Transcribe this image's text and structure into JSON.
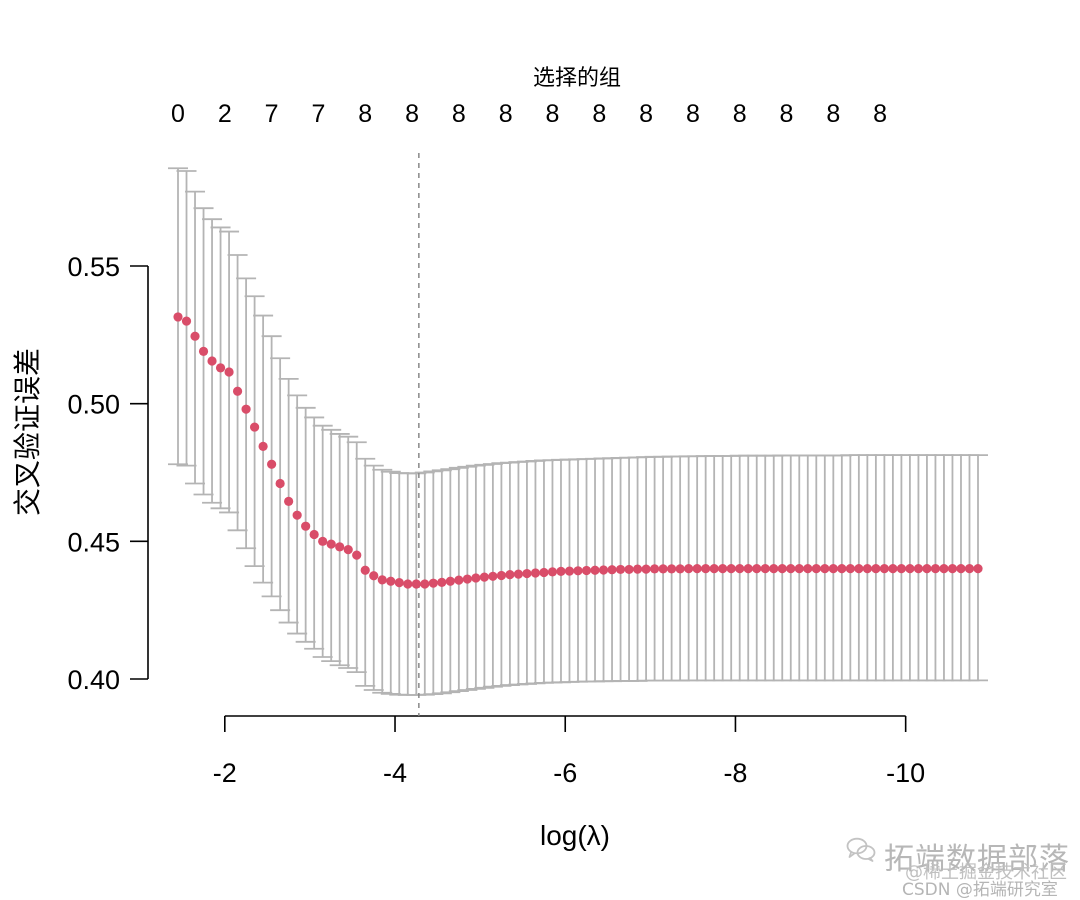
{
  "chart_data": {
    "type": "scatter",
    "top_axis_title": "选择的组",
    "ylabel": "交叉验证误差",
    "xlabel": "log(λ)",
    "x_ticks": [
      -2,
      -4,
      -6,
      -8,
      -10
    ],
    "x_tick_labels": [
      "-2",
      "-4",
      "-6",
      "-8",
      "-10"
    ],
    "y_ticks": [
      0.4,
      0.45,
      0.5,
      0.55
    ],
    "y_tick_labels": [
      "0.40",
      "0.45",
      "0.50",
      "0.55"
    ],
    "top_counts": [
      {
        "x": -1.45,
        "label": "0"
      },
      {
        "x": -2.0,
        "label": "2"
      },
      {
        "x": -2.55,
        "label": "7"
      },
      {
        "x": -3.1,
        "label": "7"
      },
      {
        "x": -3.65,
        "label": "8"
      },
      {
        "x": -4.2,
        "label": "8"
      },
      {
        "x": -4.75,
        "label": "8"
      },
      {
        "x": -5.3,
        "label": "8"
      },
      {
        "x": -5.85,
        "label": "8"
      },
      {
        "x": -6.4,
        "label": "8"
      },
      {
        "x": -6.95,
        "label": "8"
      },
      {
        "x": -7.5,
        "label": "8"
      },
      {
        "x": -8.05,
        "label": "8"
      },
      {
        "x": -8.6,
        "label": "8"
      },
      {
        "x": -9.15,
        "label": "8"
      },
      {
        "x": -9.7,
        "label": "8"
      }
    ],
    "xlim": [
      -1.45,
      -10.85
    ],
    "ylim": [
      0.4,
      0.55
    ],
    "vline": {
      "x": -4.28,
      "style": "dashed"
    },
    "point_color": "#d94d69",
    "error_bar_color": "#b4b4b4",
    "series": [
      {
        "x": [
          -1.45,
          -1.55,
          -1.65,
          -1.75,
          -1.85,
          -1.95,
          -2.05,
          -2.15,
          -2.25,
          -2.35,
          -2.45,
          -2.55,
          -2.65,
          -2.75,
          -2.85,
          -2.95,
          -3.05,
          -3.15,
          -3.25,
          -3.35,
          -3.45,
          -3.55,
          -3.65,
          -3.75,
          -3.85,
          -3.95,
          -4.05,
          -4.15,
          -4.25,
          -4.35,
          -4.45,
          -4.55,
          -4.65,
          -4.75,
          -4.85,
          -4.95,
          -5.05,
          -5.15,
          -5.25,
          -5.35,
          -5.45,
          -5.55,
          -5.65,
          -5.75,
          -5.85,
          -5.95,
          -6.05,
          -6.15,
          -6.25,
          -6.35,
          -6.45,
          -6.55,
          -6.65,
          -6.75,
          -6.85,
          -6.95,
          -7.05,
          -7.15,
          -7.25,
          -7.35,
          -7.45,
          -7.55,
          -7.65,
          -7.75,
          -7.85,
          -7.95,
          -8.05,
          -8.15,
          -8.25,
          -8.35,
          -8.45,
          -8.55,
          -8.65,
          -8.75,
          -8.85,
          -8.95,
          -9.05,
          -9.15,
          -9.25,
          -9.35,
          -9.45,
          -9.55,
          -9.65,
          -9.75,
          -9.85,
          -9.95,
          -10.05,
          -10.15,
          -10.25,
          -10.35,
          -10.45,
          -10.55,
          -10.65,
          -10.75,
          -10.85
        ],
        "y": [
          0.5315,
          0.53,
          0.5245,
          0.519,
          0.5155,
          0.513,
          0.5115,
          0.5045,
          0.498,
          0.4915,
          0.4845,
          0.478,
          0.471,
          0.4645,
          0.4595,
          0.4555,
          0.4525,
          0.45,
          0.449,
          0.448,
          0.447,
          0.445,
          0.4395,
          0.4375,
          0.436,
          0.4355,
          0.435,
          0.4345,
          0.4345,
          0.4345,
          0.4348,
          0.4351,
          0.4355,
          0.4359,
          0.4363,
          0.4367,
          0.437,
          0.4373,
          0.4376,
          0.4379,
          0.4381,
          0.4383,
          0.4385,
          0.4387,
          0.4389,
          0.4391,
          0.4392,
          0.4393,
          0.4394,
          0.4395,
          0.4396,
          0.4397,
          0.4398,
          0.4398,
          0.4399,
          0.4399,
          0.44,
          0.44,
          0.44,
          0.44,
          0.4401,
          0.4401,
          0.4401,
          0.4401,
          0.4401,
          0.4401,
          0.4401,
          0.4401,
          0.4401,
          0.4401,
          0.4401,
          0.4401,
          0.4401,
          0.4401,
          0.4401,
          0.4401,
          0.4401,
          0.4401,
          0.4401,
          0.4401,
          0.4401,
          0.4401,
          0.4401,
          0.4401,
          0.4401,
          0.4401,
          0.4401,
          0.4401,
          0.4401,
          0.4401,
          0.4401,
          0.4401,
          0.4401,
          0.4401,
          0.4401
        ],
        "upper": [
          0.5855,
          0.5845,
          0.577,
          0.571,
          0.567,
          0.564,
          0.5625,
          0.554,
          0.5455,
          0.539,
          0.532,
          0.5245,
          0.5165,
          0.509,
          0.503,
          0.4985,
          0.495,
          0.492,
          0.4905,
          0.489,
          0.488,
          0.486,
          0.48,
          0.4775,
          0.476,
          0.4753,
          0.4748,
          0.4747,
          0.4747,
          0.475,
          0.4754,
          0.4758,
          0.4762,
          0.4767,
          0.4771,
          0.4775,
          0.4778,
          0.4781,
          0.4784,
          0.4786,
          0.4788,
          0.479,
          0.4792,
          0.4794,
          0.4795,
          0.4796,
          0.4797,
          0.4798,
          0.4799,
          0.48,
          0.4801,
          0.4802,
          0.4803,
          0.4804,
          0.4805,
          0.4806,
          0.4807,
          0.4807,
          0.4808,
          0.4808,
          0.4809,
          0.4809,
          0.481,
          0.481,
          0.481,
          0.481,
          0.4811,
          0.4811,
          0.4811,
          0.4811,
          0.4811,
          0.4812,
          0.4812,
          0.4812,
          0.4812,
          0.4812,
          0.4812,
          0.4812,
          0.4812,
          0.4813,
          0.4813,
          0.4813,
          0.4813,
          0.4813,
          0.4813,
          0.4813,
          0.4813,
          0.4813,
          0.4813,
          0.4813,
          0.4813,
          0.4813,
          0.4813,
          0.4813,
          0.4813
        ],
        "lower": [
          0.478,
          0.4775,
          0.471,
          0.467,
          0.464,
          0.462,
          0.4605,
          0.454,
          0.4475,
          0.441,
          0.435,
          0.43,
          0.425,
          0.4205,
          0.4165,
          0.4135,
          0.411,
          0.408,
          0.4065,
          0.405,
          0.404,
          0.4025,
          0.3975,
          0.396,
          0.395,
          0.3946,
          0.3943,
          0.3942,
          0.3942,
          0.3943,
          0.3945,
          0.3948,
          0.3952,
          0.3956,
          0.396,
          0.3964,
          0.3968,
          0.3972,
          0.3975,
          0.3978,
          0.398,
          0.3982,
          0.3984,
          0.3986,
          0.3987,
          0.3988,
          0.3989,
          0.399,
          0.3991,
          0.3991,
          0.3992,
          0.3992,
          0.3993,
          0.3993,
          0.3993,
          0.3994,
          0.3994,
          0.3994,
          0.3994,
          0.3994,
          0.3995,
          0.3995,
          0.3995,
          0.3995,
          0.3995,
          0.3995,
          0.3995,
          0.3995,
          0.3995,
          0.3995,
          0.3995,
          0.3995,
          0.3995,
          0.3995,
          0.3995,
          0.3995,
          0.3995,
          0.3995,
          0.3995,
          0.3995,
          0.3995,
          0.3995,
          0.3995,
          0.3995,
          0.3995,
          0.3995,
          0.3995,
          0.3995,
          0.3995,
          0.3995,
          0.3995,
          0.3995,
          0.3995,
          0.3995,
          0.3995
        ]
      }
    ]
  },
  "watermark": {
    "main": "拓端数据部落",
    "sub1": "@稀土掘金技术社区",
    "sub2": "CSDN @拓端研究室",
    "icon": "wechat-icon"
  }
}
